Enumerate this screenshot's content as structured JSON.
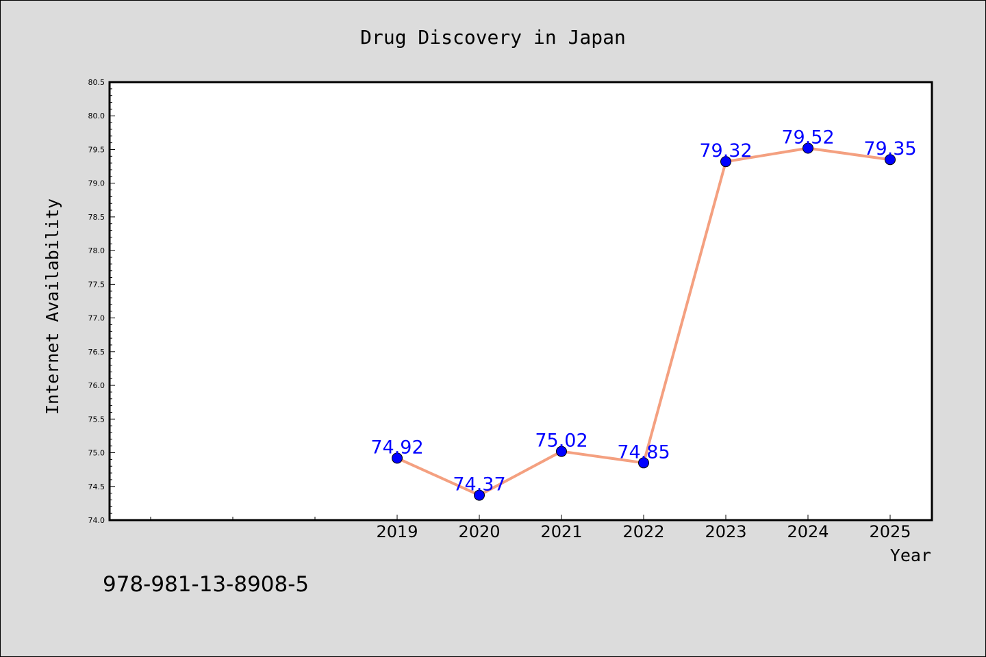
{
  "chart_data": {
    "type": "line",
    "title": "Drug Discovery in Japan",
    "xlabel": "Year",
    "ylabel": "Internet Availability",
    "x": [
      "2019",
      "2020",
      "2021",
      "2022",
      "2023",
      "2024",
      "2025"
    ],
    "series": [
      {
        "values": [
          74.92,
          74.37,
          75.02,
          74.85,
          79.32,
          79.52,
          79.35
        ]
      }
    ],
    "data_labels": [
      "74.92",
      "74.37",
      "75.02",
      "74.85",
      "79.32",
      "79.52",
      "79.35"
    ],
    "ylim": [
      74.0,
      80.5
    ],
    "yticks": [
      "74.0",
      "74.5",
      "75.0",
      "75.5",
      "76.0",
      "76.5",
      "77.0",
      "77.5",
      "78.0",
      "78.5",
      "79.0",
      "79.5",
      "80.0",
      "80.5"
    ],
    "grid": false,
    "line_color": "#f4a080",
    "marker_color": "#0000ff",
    "label_color": "#0000ff",
    "background_color": "#dcdcdc",
    "plot_background_color": "#ffffff"
  },
  "footnote": "978-981-13-8908-5"
}
